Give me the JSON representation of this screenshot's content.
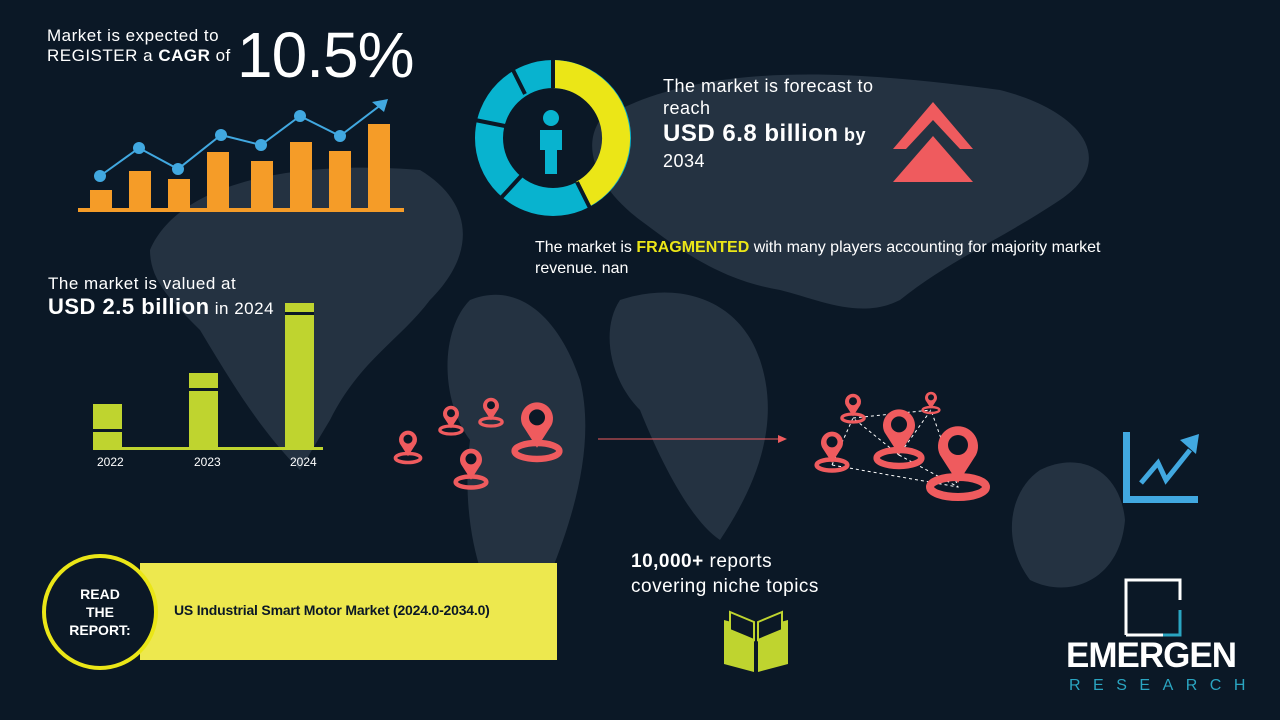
{
  "cagr": {
    "line1": "Market is expected to",
    "line2_pre": "REGISTER a ",
    "line2_bold": "CAGR",
    "line2_post": " of",
    "value": "10.5%"
  },
  "forecast": {
    "line1": "The market is forecast to",
    "line2": "reach",
    "value": "USD 6.8 billion",
    "by": " by",
    "year": "2034"
  },
  "fragmented": {
    "pre": "The market is ",
    "highlight": "FRAGMENTED",
    "post": " with many players accounting for majority market",
    "line2": "revenue. nan"
  },
  "valued": {
    "line1": "The market is valued at",
    "value": "USD 2.5 billion",
    "post": " in 2024"
  },
  "value_chart": {
    "categories": [
      "2022",
      "2023",
      "2024"
    ]
  },
  "report": {
    "circle_label": [
      "READ",
      "THE",
      "REPORT:"
    ],
    "title": "US Industrial Smart Motor Market (2024.0-2034.0)"
  },
  "reports": {
    "line1_bold": "10,000+",
    "line1_post": " reports",
    "line2": "covering niche topics"
  },
  "logo": {
    "name": "EMERGEN",
    "sub": "RESEARCH"
  },
  "colors": {
    "background": "#0b1826",
    "map": "#243241",
    "orange": "#f59c28",
    "blue": "#41a8e0",
    "yellow": "#ebe617",
    "cyan": "#08b3cf",
    "green": "#bfd42f",
    "red": "#ef5b5e",
    "banner": "#ede84e"
  },
  "icons": [
    "growth-chart-icon",
    "donut-person-icon",
    "double-chevron-up-icon",
    "location-pin-icon",
    "trend-up-icon",
    "book-icon",
    "emergen-logo"
  ]
}
